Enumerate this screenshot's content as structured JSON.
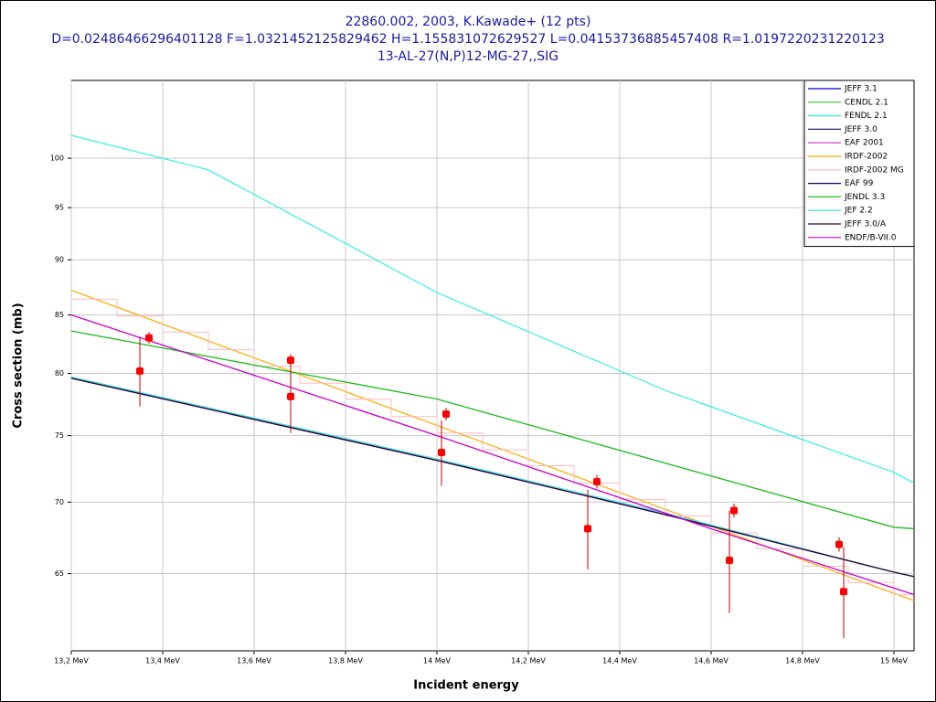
{
  "chart_data": {
    "type": "line",
    "title_lines": [
      "22860.002, 2003, K.Kawade+ (12 pts)",
      "D=0.02486466296401128 F=1.0321452125829462 H=1.155831072629527 L=0.04153736885457408 R=1.0197220231220123",
      "13-AL-27(N,P)12-MG-27,,SIG"
    ],
    "x_label": "Incident energy",
    "y_label": "Cross section (mb)",
    "xlim": [
      13.2,
      15.044
    ],
    "ylim": [
      60,
      108.4
    ],
    "ylog": true,
    "grid": true,
    "legend_position": "upper right",
    "xticks": [
      {
        "value": 13.2,
        "label": "13,2 MeV"
      },
      {
        "value": 13.4,
        "label": "13,4 MeV"
      },
      {
        "value": 13.6,
        "label": "13,6 MeV"
      },
      {
        "value": 13.8,
        "label": "13,8 MeV"
      },
      {
        "value": 14,
        "label": "14 MeV"
      },
      {
        "value": 14.2,
        "label": "14,2 MeV"
      },
      {
        "value": 14.4,
        "label": "14,4 MeV"
      },
      {
        "value": 14.6,
        "label": "14,6 MeV"
      },
      {
        "value": 14.8,
        "label": "14,8 MeV"
      },
      {
        "value": 15,
        "label": "15 MeV"
      }
    ],
    "yticks": [
      65,
      70,
      75,
      80,
      85,
      90,
      95,
      100
    ],
    "series": [
      {
        "name": "JEFF 3.1",
        "color": "#0000cc",
        "x": [
          13.2,
          14.0,
          14.5,
          15.0,
          15.044
        ],
        "values": [
          79.6,
          73.1,
          69.1,
          65.1,
          64.8
        ]
      },
      {
        "name": "CENDL 2.1",
        "color": "#33cc33",
        "x": [
          13.2,
          14.0,
          15.0,
          15.044
        ],
        "values": [
          83.6,
          77.9,
          68.2,
          68.1
        ]
      },
      {
        "name": "FENDL 2.1",
        "color": "#33eeee",
        "x": [
          13.2,
          13.5,
          14.0,
          14.5,
          15.0,
          15.044
        ],
        "values": [
          102.4,
          98.8,
          87.0,
          78.6,
          72.2,
          71.4
        ]
      },
      {
        "name": "JEFF 3.0",
        "color": "#222266",
        "x": [
          13.2,
          14.0,
          14.5,
          15.0,
          15.044
        ],
        "values": [
          79.6,
          73.1,
          69.1,
          65.1,
          64.8
        ]
      },
      {
        "name": "EAF 2001",
        "color": "#cc33cc",
        "x": [
          13.2,
          14.0,
          14.6,
          15.044
        ],
        "values": [
          85.0,
          75.0,
          68.1,
          63.6
        ]
      },
      {
        "name": "IRDF-2002",
        "color": "#ffaa00",
        "x": [
          13.2,
          14.0,
          15.044
        ],
        "values": [
          87.2,
          75.8,
          63.2
        ]
      },
      {
        "name": "IRDF-2002 MG",
        "color": "#ffbbbb",
        "step": true,
        "x": [
          13.2,
          13.3,
          13.4,
          13.5,
          13.6,
          13.7,
          13.8,
          13.9,
          14.0,
          14.1,
          14.2,
          14.3,
          14.4,
          14.5,
          14.6,
          14.7,
          14.8,
          14.9,
          15.0
        ],
        "values": [
          86.4,
          84.9,
          83.5,
          82.0,
          80.6,
          79.2,
          77.9,
          76.5,
          75.2,
          73.9,
          72.7,
          71.4,
          70.2,
          69.0,
          67.8,
          66.7,
          65.5,
          64.4,
          63.6
        ]
      },
      {
        "name": "EAF 99",
        "color": "#000066",
        "x": [
          13.2,
          14.0,
          14.5,
          15.0,
          15.044
        ],
        "values": [
          79.6,
          73.1,
          69.1,
          65.1,
          64.8
        ]
      },
      {
        "name": "JENDL 3.3",
        "color": "#22bb22",
        "x": [
          13.2,
          14.0,
          15.0,
          15.044
        ],
        "values": [
          83.6,
          77.9,
          68.2,
          68.1
        ]
      },
      {
        "name": "JEF 2.2",
        "color": "#33dddd",
        "x": [
          13.2,
          14.0,
          14.5,
          15.0,
          15.044
        ],
        "values": [
          79.7,
          73.2,
          69.2,
          65.1,
          64.8
        ]
      },
      {
        "name": "JEFF 3.0/A",
        "color": "#330033",
        "x": [
          13.2,
          14.0,
          14.5,
          15.0,
          15.044
        ],
        "values": [
          79.6,
          73.1,
          69.1,
          65.1,
          64.8
        ]
      },
      {
        "name": "ENDF/B-VII.0",
        "color": "#cc00cc",
        "x": [
          13.2,
          14.0,
          14.6,
          15.044
        ],
        "values": [
          85.0,
          75.0,
          68.1,
          63.6
        ]
      }
    ],
    "points": {
      "color": "#ff0000",
      "error_color": "#bb0000",
      "x": [
        13.35,
        13.37,
        13.68,
        13.68,
        14.02,
        14.01,
        14.35,
        14.33,
        14.65,
        14.64,
        14.88,
        14.89
      ],
      "values": [
        80.2,
        83.0,
        81.1,
        78.1,
        76.7,
        73.7,
        71.5,
        68.1,
        69.4,
        65.9,
        67.0,
        63.8
      ],
      "errors": [
        2.9,
        0.5,
        0.5,
        2.9,
        0.5,
        2.5,
        0.5,
        2.8,
        0.5,
        3.5,
        0.5,
        3.0
      ]
    }
  }
}
